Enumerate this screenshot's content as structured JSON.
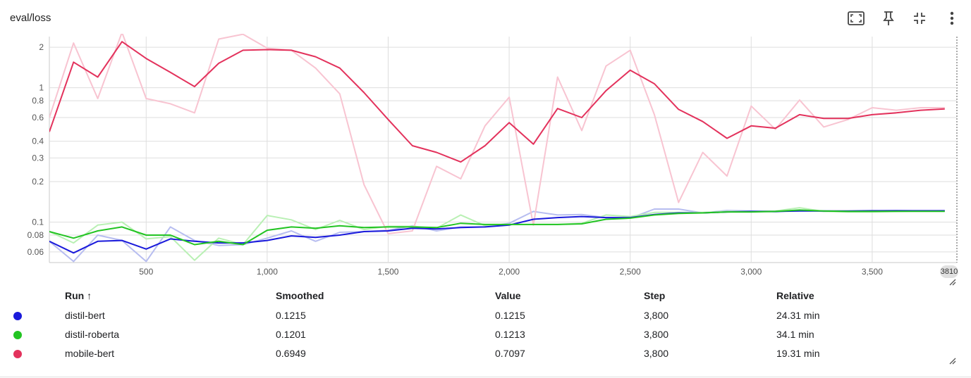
{
  "card": {
    "title": "eval/loss",
    "toolbar": [
      {
        "name": "fullscreen-icon",
        "label": "Fullscreen"
      },
      {
        "name": "pin-icon",
        "label": "Pin"
      },
      {
        "name": "fit-domain-icon",
        "label": "Fit domain"
      },
      {
        "name": "more-vert-icon",
        "label": "More"
      }
    ],
    "step_badge": "3810"
  },
  "chart_data": {
    "type": "line",
    "title": "eval/loss",
    "xlabel": "",
    "ylabel": "",
    "y_scale": "log",
    "xlim": [
      100,
      3850
    ],
    "ylim": [
      0.05,
      2.4
    ],
    "x_ticks": [
      500,
      1000,
      1500,
      2000,
      2500,
      3000,
      3500
    ],
    "x_tick_labels": [
      "500",
      "1,000",
      "1,500",
      "2,000",
      "2,500",
      "3,000",
      "3,500"
    ],
    "y_ticks": [
      0.06,
      0.08,
      0.1,
      0.2,
      0.3,
      0.4,
      0.6,
      0.8,
      1,
      2
    ],
    "y_tick_labels": [
      "0.06",
      "0.08",
      "0.1",
      "0.2",
      "0.3",
      "0.4",
      "0.6",
      "0.8",
      "1",
      "2"
    ],
    "grid": true,
    "x": [
      100,
      200,
      300,
      400,
      500,
      600,
      700,
      800,
      900,
      1000,
      1100,
      1200,
      1300,
      1400,
      1500,
      1600,
      1700,
      1800,
      1900,
      2000,
      2100,
      2200,
      2300,
      2400,
      2500,
      2600,
      2700,
      2800,
      2900,
      3000,
      3100,
      3200,
      3300,
      3400,
      3500,
      3600,
      3700,
      3800
    ],
    "series": [
      {
        "name": "distil-bert",
        "color": "#1a1adb",
        "raw_color": "#b7bdf0",
        "smoothed": [
          0.072,
          0.059,
          0.072,
          0.073,
          0.063,
          0.075,
          0.072,
          0.07,
          0.07,
          0.073,
          0.079,
          0.077,
          0.08,
          0.085,
          0.086,
          0.09,
          0.089,
          0.091,
          0.092,
          0.095,
          0.105,
          0.108,
          0.11,
          0.108,
          0.108,
          0.114,
          0.117,
          0.117,
          0.119,
          0.12,
          0.12,
          0.121,
          0.121,
          0.121,
          0.1215,
          0.1215,
          0.1215,
          0.1215
        ],
        "raw": [
          0.072,
          0.051,
          0.08,
          0.073,
          0.051,
          0.092,
          0.073,
          0.067,
          0.068,
          0.076,
          0.086,
          0.072,
          0.084,
          0.085,
          0.087,
          0.094,
          0.086,
          0.092,
          0.092,
          0.098,
          0.12,
          0.113,
          0.114,
          0.108,
          0.107,
          0.125,
          0.125,
          0.117,
          0.122,
          0.121,
          0.119,
          0.123,
          0.12,
          0.12,
          0.121,
          0.122,
          0.121,
          0.1215
        ]
      },
      {
        "name": "distil-roberta",
        "color": "#22c422",
        "raw_color": "#b9f0b4",
        "smoothed": [
          0.085,
          0.076,
          0.086,
          0.092,
          0.08,
          0.08,
          0.068,
          0.072,
          0.068,
          0.087,
          0.092,
          0.09,
          0.094,
          0.091,
          0.092,
          0.092,
          0.091,
          0.098,
          0.096,
          0.096,
          0.096,
          0.096,
          0.097,
          0.105,
          0.107,
          0.113,
          0.116,
          0.117,
          0.119,
          0.119,
          0.12,
          0.123,
          0.121,
          0.12,
          0.12,
          0.1201,
          0.1201,
          0.1201
        ],
        "raw": [
          0.085,
          0.07,
          0.095,
          0.1,
          0.075,
          0.078,
          0.052,
          0.076,
          0.068,
          0.112,
          0.104,
          0.088,
          0.103,
          0.088,
          0.093,
          0.093,
          0.09,
          0.113,
          0.094,
          0.096,
          0.096,
          0.096,
          0.098,
          0.113,
          0.11,
          0.118,
          0.118,
          0.118,
          0.12,
          0.12,
          0.121,
          0.128,
          0.12,
          0.119,
          0.119,
          0.12,
          0.121,
          0.1213
        ]
      },
      {
        "name": "mobile-bert",
        "color": "#e3325c",
        "raw_color": "#f8c4d1",
        "smoothed": [
          0.47,
          1.55,
          1.2,
          2.2,
          1.65,
          1.3,
          1.02,
          1.52,
          1.9,
          1.92,
          1.9,
          1.7,
          1.4,
          0.92,
          0.58,
          0.37,
          0.33,
          0.28,
          0.37,
          0.55,
          0.38,
          0.7,
          0.6,
          0.95,
          1.35,
          1.07,
          0.69,
          0.56,
          0.42,
          0.52,
          0.5,
          0.63,
          0.59,
          0.59,
          0.63,
          0.65,
          0.68,
          0.6949
        ],
        "raw": [
          0.6,
          2.15,
          0.83,
          2.6,
          0.83,
          0.76,
          0.65,
          2.3,
          2.5,
          1.97,
          1.9,
          1.4,
          0.9,
          0.19,
          0.082,
          0.086,
          0.26,
          0.21,
          0.52,
          0.85,
          0.095,
          1.2,
          0.48,
          1.45,
          1.9,
          0.63,
          0.14,
          0.33,
          0.22,
          0.73,
          0.49,
          0.81,
          0.51,
          0.58,
          0.71,
          0.68,
          0.71,
          0.7097
        ]
      }
    ]
  },
  "table": {
    "headers": {
      "run": "Run ↑",
      "smoothed": "Smoothed",
      "value": "Value",
      "step": "Step",
      "relative": "Relative"
    },
    "rows": [
      {
        "color": "#1a1adb",
        "run": "distil-bert",
        "smoothed": "0.1215",
        "value": "0.1215",
        "step": "3,800",
        "relative": "24.31 min"
      },
      {
        "color": "#22c422",
        "run": "distil-roberta",
        "smoothed": "0.1201",
        "value": "0.1213",
        "step": "3,800",
        "relative": "34.1 min"
      },
      {
        "color": "#e3325c",
        "run": "mobile-bert",
        "smoothed": "0.6949",
        "value": "0.7097",
        "step": "3,800",
        "relative": "19.31 min"
      }
    ]
  }
}
